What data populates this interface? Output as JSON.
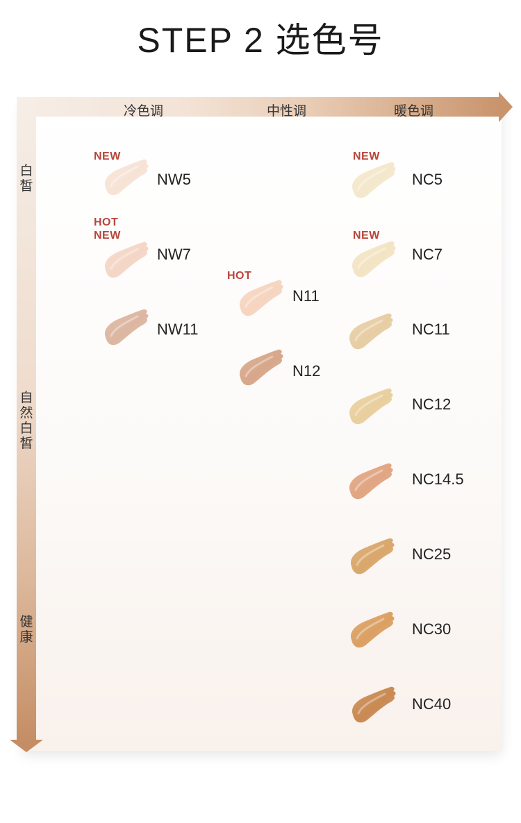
{
  "title": "STEP 2 选色号",
  "columns": {
    "cool": "冷色调",
    "neutral": "中性调",
    "warm": "暖色调"
  },
  "rows": {
    "fair": "白皙",
    "natural": "自然白皙",
    "healthy": "健康"
  },
  "badges": {
    "nw5": "NEW",
    "nw7_hot": "HOT",
    "nw7_new": "NEW",
    "n11": "HOT",
    "nc5": "NEW",
    "nc7": "NEW"
  },
  "shades": {
    "nw5": "NW5",
    "nw7": "NW7",
    "nw11": "NW11",
    "n11": "N11",
    "n12": "N12",
    "nc5": "NC5",
    "nc7": "NC7",
    "nc11": "NC11",
    "nc12": "NC12",
    "nc145": "NC14.5",
    "nc25": "NC25",
    "nc30": "NC30",
    "nc40": "NC40"
  },
  "swatch_colors": {
    "nw5": "#f7e3d6",
    "nw7": "#f4d6c6",
    "nw11": "#dcb6a1",
    "n11": "#f6d5c0",
    "n12": "#d7a78a",
    "nc5": "#f4e8cc",
    "nc7": "#f3e4c4",
    "nc11": "#e7cda4",
    "nc12": "#e9cf9e",
    "nc145": "#e1a582",
    "nc25": "#d9a76b",
    "nc30": "#dba063",
    "nc40": "#c98a52"
  },
  "colors": {
    "accent": "#b8453c",
    "arrow": "#c9946c"
  }
}
